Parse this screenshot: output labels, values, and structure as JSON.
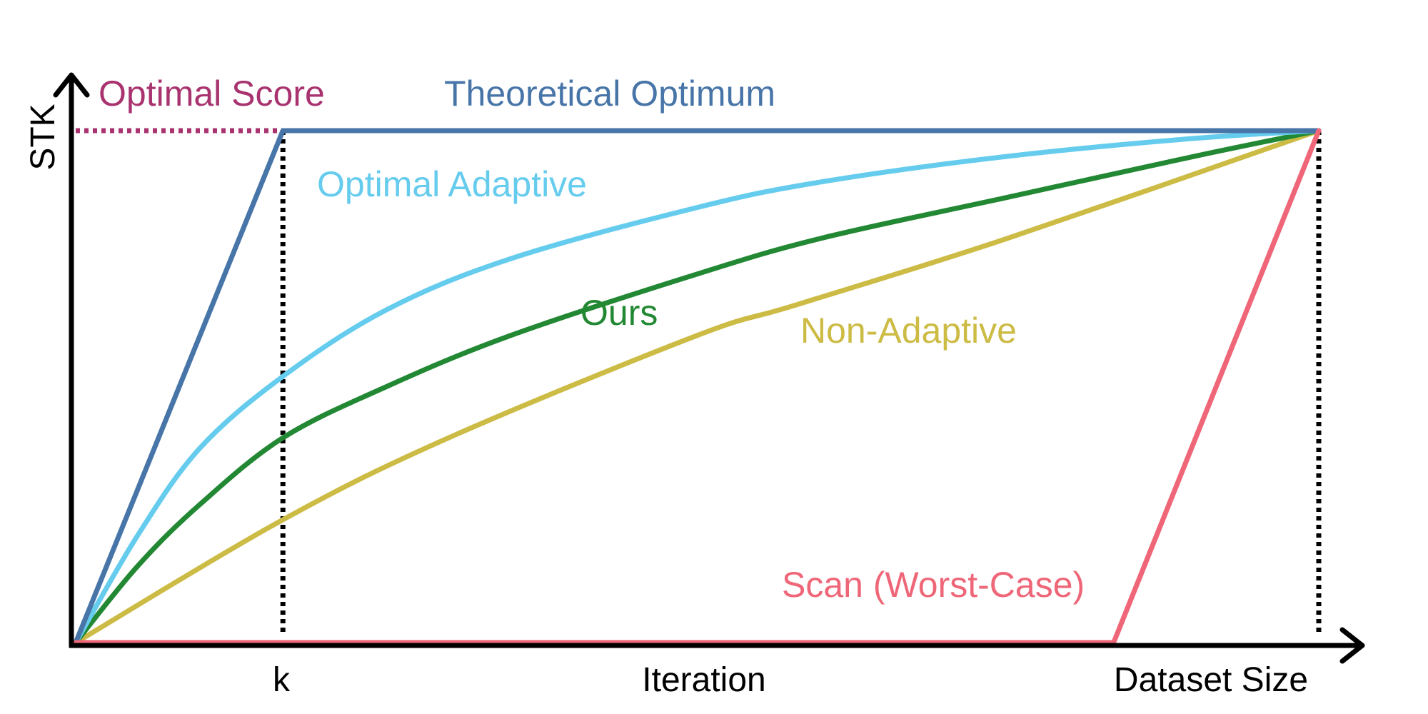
{
  "chart_data": {
    "type": "line",
    "xlabel": "Iteration",
    "ylabel": "STK",
    "x_ticks": [
      {
        "label": "k",
        "x": 0.1667
      },
      {
        "label": "Dataset Size",
        "x": 1.0
      }
    ],
    "xlim": [
      0,
      1
    ],
    "ylim": [
      0,
      1
    ],
    "grid": false,
    "reference_lines": [
      {
        "name": "Optimal Score",
        "orientation": "horizontal",
        "y": 1.0,
        "style": "dotted",
        "color": "#A8336F"
      },
      {
        "name": "k-marker",
        "orientation": "vertical",
        "x": 0.1667,
        "style": "dotted",
        "color": "#000000"
      },
      {
        "name": "dataset-size-marker",
        "orientation": "vertical",
        "x": 1.0,
        "style": "dotted",
        "color": "#000000"
      }
    ],
    "series": [
      {
        "name": "Theoretical Optimum",
        "color": "#4775A8",
        "x": [
          0,
          0.1667,
          1.0
        ],
        "y": [
          0,
          1.0,
          1.0
        ]
      },
      {
        "name": "Optimal Adaptive",
        "color": "#66CCEE",
        "x": [
          0,
          0.05,
          0.1,
          0.1667,
          0.25,
          0.35,
          0.5,
          0.6,
          0.75,
          0.9,
          1.0
        ],
        "y": [
          0,
          0.21,
          0.38,
          0.52,
          0.65,
          0.75,
          0.85,
          0.9,
          0.95,
          0.985,
          1.0
        ]
      },
      {
        "name": "Ours",
        "color": "#228833",
        "x": [
          0,
          0.05,
          0.1,
          0.1667,
          0.25,
          0.35,
          0.5,
          0.6,
          0.75,
          0.9,
          1.0
        ],
        "y": [
          0,
          0.15,
          0.27,
          0.4,
          0.5,
          0.6,
          0.72,
          0.79,
          0.87,
          0.95,
          1.0
        ]
      },
      {
        "name": "Non-Adaptive",
        "color": "#CCBB44",
        "x": [
          0,
          0.1667,
          0.3,
          0.5,
          0.58,
          0.75,
          1.0
        ],
        "y": [
          0,
          0.24,
          0.4,
          0.6,
          0.66,
          0.79,
          1.0
        ]
      },
      {
        "name": "Scan (Worst-Case)",
        "color": "#EE6677",
        "x": [
          0,
          0.835,
          1.0
        ],
        "y": [
          0,
          0,
          1.0
        ]
      }
    ]
  }
}
